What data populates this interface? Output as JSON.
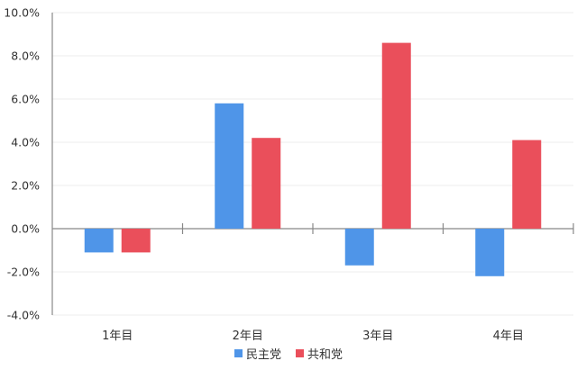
{
  "chart_data": {
    "type": "bar",
    "title": "",
    "xlabel": "",
    "ylabel": "",
    "categories": [
      "1年目",
      "2年目",
      "3年目",
      "4年目"
    ],
    "series": [
      {
        "name": "民主党",
        "color": "#4f95e8",
        "values": [
          -1.1,
          5.8,
          -1.7,
          -2.2
        ]
      },
      {
        "name": "共和党",
        "color": "#ea4f5b",
        "values": [
          -1.1,
          4.2,
          8.6,
          4.1
        ]
      }
    ],
    "ylim": [
      -4.0,
      10.0
    ],
    "yticks": [
      "10.0%",
      "8.0%",
      "6.0%",
      "4.0%",
      "2.0%",
      "0.0%",
      "-2.0%",
      "-4.0%"
    ],
    "ytick_values": [
      10,
      8,
      6,
      4,
      2,
      0,
      -2,
      -4
    ],
    "grid": true,
    "legend_position": "bottom"
  }
}
